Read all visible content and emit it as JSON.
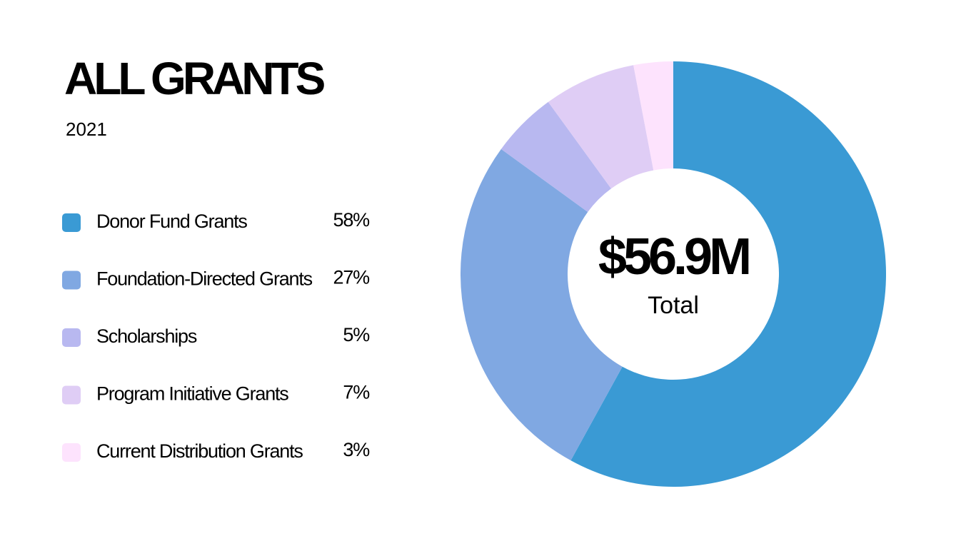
{
  "chart_data": {
    "type": "donut",
    "title": "ALL GRANTS",
    "subtitle": "2021",
    "categories": [
      "Donor Fund Grants",
      "Foundation-Directed Grants",
      "Scholarships",
      "Program Initiative Grants",
      "Current Distribution Grants"
    ],
    "values": [
      58,
      27,
      5,
      7,
      3
    ],
    "value_labels": [
      "58%",
      "27%",
      "5%",
      "7%",
      "3%"
    ],
    "colors": [
      "#3a9ad4",
      "#80a8e2",
      "#b8b8f0",
      "#dfcdf5",
      "#fde3fd"
    ],
    "center_label": "$56.9M",
    "center_sublabel": "Total"
  }
}
